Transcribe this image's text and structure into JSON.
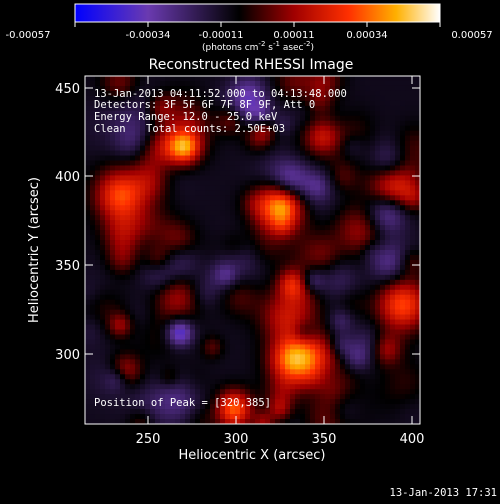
{
  "colorbar": {
    "tick_labels": [
      "-0.00057",
      "-0.00034",
      "-0.00011",
      "0.00011",
      "0.00034",
      "0.00057"
    ],
    "units_prefix": "(photons cm",
    "units_exp1": "-2",
    "units_mid1": " s",
    "units_exp2": "-1",
    "units_mid2": " asec",
    "units_exp3": "-2",
    "units_suffix": ")"
  },
  "plot": {
    "title": "Reconstructed RHESSI Image",
    "xlabel": "Heliocentric X (arcsec)",
    "ylabel": "Heliocentric Y (arcsec)",
    "x_ticks": [
      "250",
      "300",
      "350",
      "400"
    ],
    "y_ticks": [
      "450",
      "400",
      "350",
      "300"
    ],
    "x_range": [
      210,
      400
    ],
    "y_range": [
      265,
      455
    ]
  },
  "annotation": {
    "line1": "13-Jan-2013 04:11:52.000 to 04:13:48.000",
    "line2": "Detectors: 3F 5F 6F 7F 8F 9F, Att 0",
    "line3": "Energy Range: 12.0 - 25.0 keV",
    "line4_method": "Clean",
    "line4_counts": "Total counts: 2.50E+03",
    "peak": "Position of Peak = [320,385]"
  },
  "footer": {
    "timestamp": "13-Jan-2013 17:31"
  },
  "chart_data": {
    "type": "heatmap",
    "title": "Reconstructed RHESSI Image",
    "xlabel": "Heliocentric X (arcsec)",
    "ylabel": "Heliocentric Y (arcsec)",
    "xlim": [
      210,
      400
    ],
    "ylim": [
      265,
      455
    ],
    "color_scale": {
      "min": -0.00057,
      "max": 0.00057,
      "colors": [
        "#0000ff",
        "#5a2aa0",
        "#000000",
        "#c00000",
        "#ff8000",
        "#ffffff"
      ]
    },
    "peak": {
      "x": 320,
      "y": 385
    },
    "hot_spots": [
      {
        "x": 320,
        "y": 385,
        "intensity": 0.00057
      },
      {
        "x": 230,
        "y": 390,
        "intensity": 0.0004
      },
      {
        "x": 330,
        "y": 300,
        "intensity": 0.00045
      },
      {
        "x": 385,
        "y": 395,
        "intensity": 0.0004
      },
      {
        "x": 390,
        "y": 330,
        "intensity": 0.0004
      }
    ]
  }
}
